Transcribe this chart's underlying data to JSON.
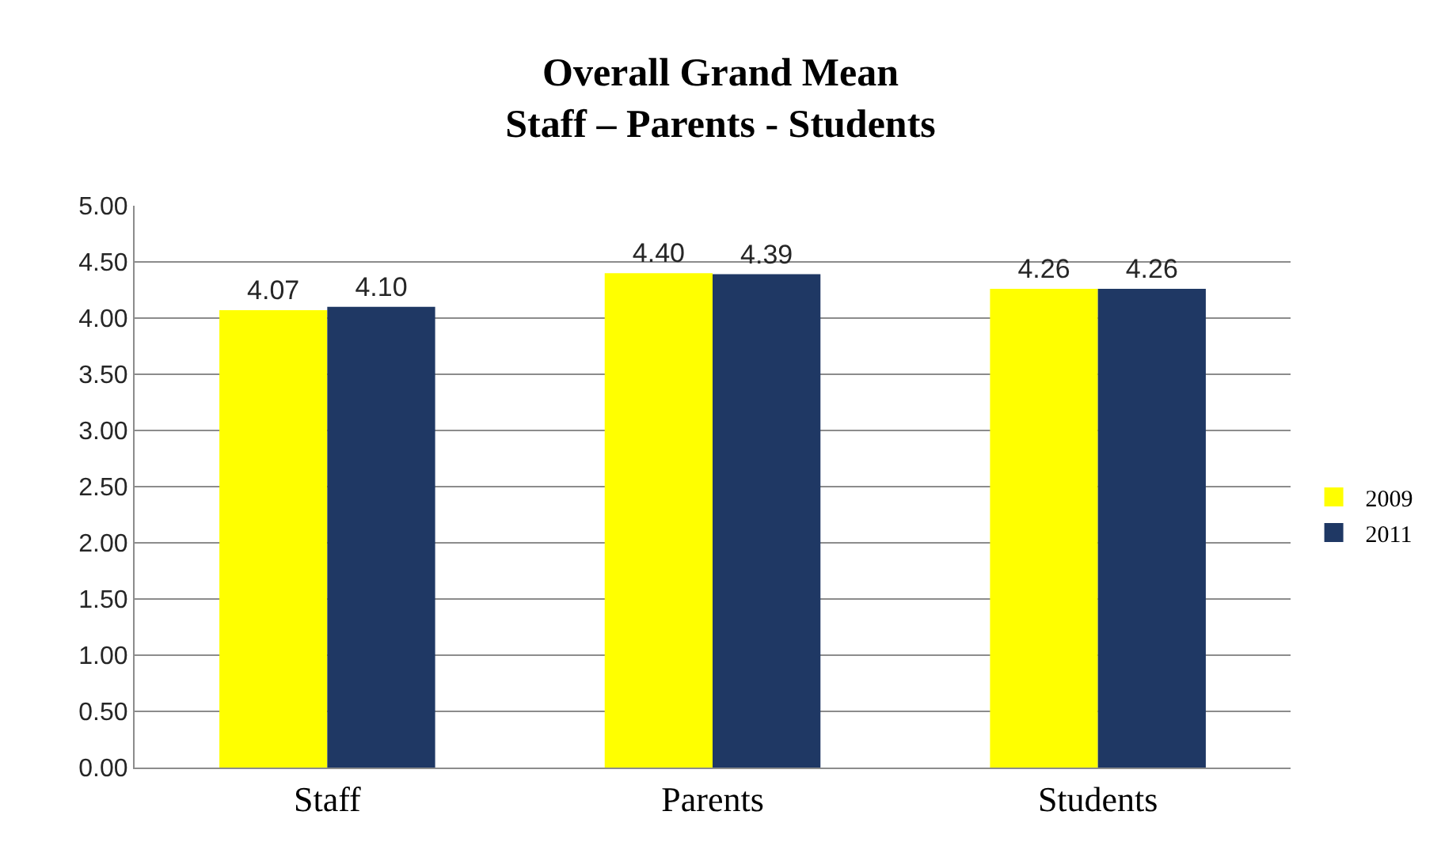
{
  "chart_data": {
    "type": "bar",
    "title": "Overall Grand Mean\nStaff – Parents - Students",
    "categories": [
      "Staff",
      "Parents",
      "Students"
    ],
    "series": [
      {
        "name": "2009",
        "color": "#ffff00",
        "values": [
          4.07,
          4.4,
          4.26
        ],
        "value_labels": [
          "4.07",
          "4.40",
          "4.26"
        ]
      },
      {
        "name": "2011",
        "color": "#1f3864",
        "values": [
          4.1,
          4.39,
          4.26
        ],
        "value_labels": [
          "4.10",
          "4.39",
          "4.26"
        ]
      }
    ],
    "ylim": [
      0,
      5
    ],
    "yticks": [
      {
        "value": 0,
        "label": "0.00"
      },
      {
        "value": 0.5,
        "label": "0.50"
      },
      {
        "value": 1,
        "label": "1.00"
      },
      {
        "value": 1.5,
        "label": "1.50"
      },
      {
        "value": 2,
        "label": "2.00"
      },
      {
        "value": 2.5,
        "label": "2.50"
      },
      {
        "value": 3,
        "label": "3.00"
      },
      {
        "value": 3.5,
        "label": "3.50"
      },
      {
        "value": 4,
        "label": "4.00"
      },
      {
        "value": 4.5,
        "label": "4.50"
      },
      {
        "value": 5,
        "label": "5.00"
      }
    ],
    "grid": "y",
    "legend": "right"
  }
}
